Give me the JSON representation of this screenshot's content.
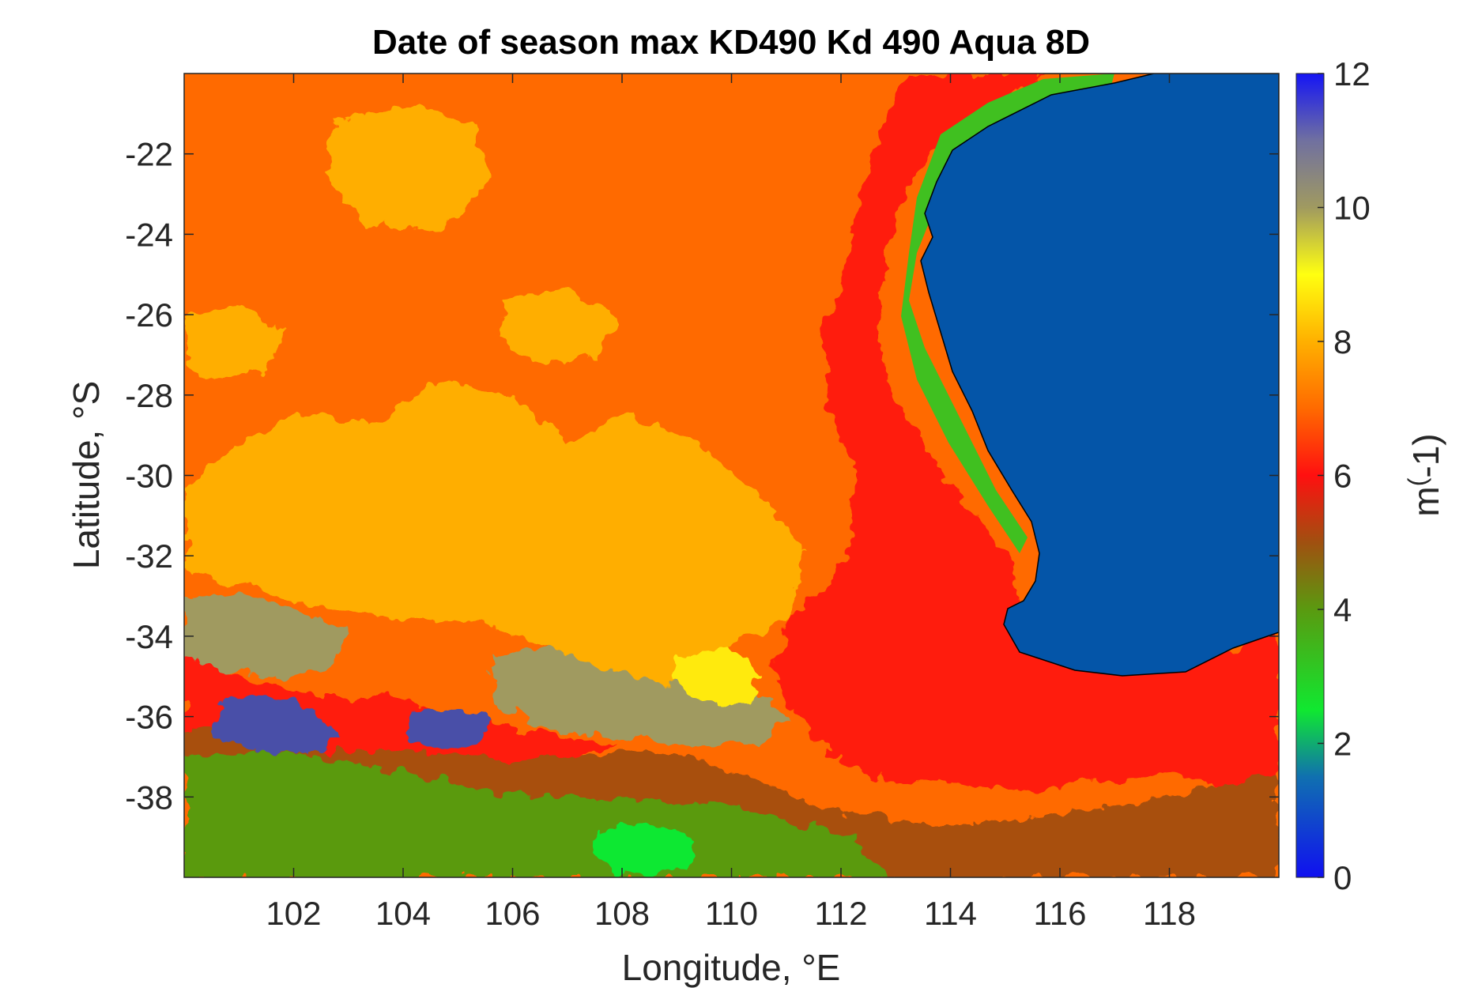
{
  "chart_data": {
    "type": "heatmap",
    "title": "Date of season max KD490 Kd 490 Aqua 8D",
    "xlabel": "Longitude, °E",
    "ylabel": "Latitude, °S",
    "xlim": [
      100,
      120
    ],
    "ylim": [
      -40,
      -20
    ],
    "x_ticks": [
      102,
      104,
      106,
      108,
      110,
      112,
      114,
      116,
      118
    ],
    "y_ticks": [
      -22,
      -24,
      -26,
      -28,
      -30,
      -32,
      -34,
      -36,
      -38
    ],
    "colorbar": {
      "label": "m^(-1)",
      "label_prefix": "m",
      "label_sup": "(",
      "label_rest": "-1)",
      "range": [
        0,
        12
      ],
      "ticks": [
        0,
        2,
        4,
        6,
        8,
        10,
        12
      ],
      "stops": [
        {
          "value": 0,
          "color": "#1010f0"
        },
        {
          "value": 1.5,
          "color": "#1070b0"
        },
        {
          "value": 2.5,
          "color": "#10e830"
        },
        {
          "value": 4,
          "color": "#5a9a10"
        },
        {
          "value": 5,
          "color": "#a05010"
        },
        {
          "value": 6,
          "color": "#ff1010"
        },
        {
          "value": 7,
          "color": "#ff6a00"
        },
        {
          "value": 8,
          "color": "#ffb000"
        },
        {
          "value": 9,
          "color": "#ffff10"
        },
        {
          "value": 10,
          "color": "#a09a60"
        },
        {
          "value": 11,
          "color": "#7070a0"
        },
        {
          "value": 12,
          "color": "#1515f5"
        }
      ]
    },
    "land_color": "#0455a8",
    "regions": [
      {
        "name": "open-ocean",
        "value": 7,
        "color": "#ff6a00"
      },
      {
        "name": "central-patch",
        "value": 8,
        "color": "#ffae00"
      },
      {
        "name": "coastal-band",
        "value": 6,
        "color": "#ff1a0a"
      },
      {
        "name": "southern-brown",
        "value": 5,
        "color": "#a85010"
      },
      {
        "name": "southern-green",
        "value": 4,
        "color": "#5a9a10"
      },
      {
        "name": "bright-green",
        "value": 2.5,
        "color": "#10e830"
      },
      {
        "name": "grey-patch",
        "value": 10,
        "color": "#a09a60"
      },
      {
        "name": "violet-patch",
        "value": 11,
        "color": "#4a50a8"
      },
      {
        "name": "yellow-patch",
        "value": 9,
        "color": "#ffea10"
      }
    ]
  }
}
